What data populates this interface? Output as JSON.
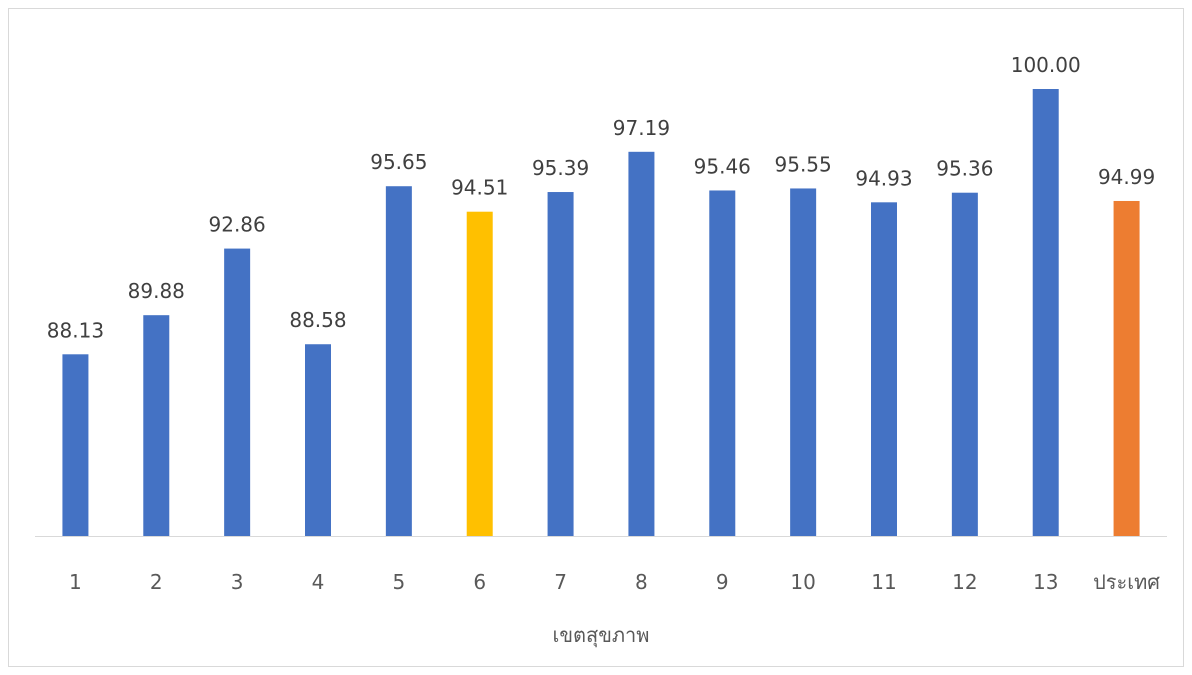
{
  "chart_data": {
    "type": "bar",
    "title": "",
    "xlabel": "เขตสุขภาพ",
    "ylabel": "",
    "categories": [
      "1",
      "2",
      "3",
      "4",
      "5",
      "6",
      "7",
      "8",
      "9",
      "10",
      "11",
      "12",
      "13",
      "ประเทศ"
    ],
    "values": [
      88.13,
      89.88,
      92.86,
      88.58,
      95.65,
      94.51,
      95.39,
      97.19,
      95.46,
      95.55,
      94.93,
      95.36,
      100.0,
      94.99
    ],
    "value_labels": [
      "88.13",
      "89.88",
      "92.86",
      "88.58",
      "95.65",
      "94.51",
      "95.39",
      "97.19",
      "95.46",
      "95.55",
      "94.93",
      "95.36",
      "100.00",
      "94.99"
    ],
    "ylim": [
      80,
      102
    ],
    "grid": false,
    "legend": "none",
    "colors": {
      "default": "#4472C4",
      "highlight": "#FFC000",
      "national": "#ED7D31"
    },
    "bar_colors": [
      "default",
      "default",
      "default",
      "default",
      "default",
      "highlight",
      "default",
      "default",
      "default",
      "default",
      "default",
      "default",
      "default",
      "national"
    ]
  }
}
